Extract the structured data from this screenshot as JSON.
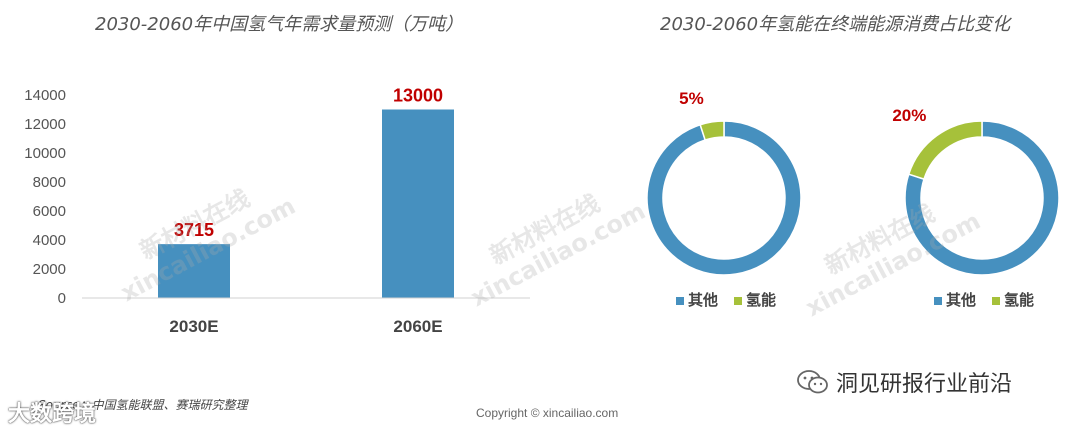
{
  "colors": {
    "bar": "#4690BF",
    "other": "#4690BF",
    "hydrogen": "#A6C13A",
    "label_red": "#C00000",
    "axis_text": "#555555"
  },
  "watermark": {
    "cn": "新材料在线",
    "en": "xincailiao.com"
  },
  "source_text": "Source：中国氢能联盟、赛瑞研究整理",
  "copyright": "Copyright © xincailiao.com",
  "badge_text": "大数跨境",
  "wechat_label": "洞见研报行业前沿",
  "chart_data": [
    {
      "type": "bar",
      "title": "2030-2060年中国氢气年需求量预测（万吨）",
      "categories": [
        "2030E",
        "2060E"
      ],
      "values": [
        3715,
        13000
      ],
      "data_labels": [
        "3715",
        "13000"
      ],
      "ylim": [
        0,
        14000
      ],
      "yticks": [
        0,
        2000,
        4000,
        6000,
        8000,
        10000,
        12000,
        14000
      ],
      "xlabel": "",
      "ylabel": "",
      "grid": false
    },
    {
      "type": "pie",
      "title": "2030-2060年氢能在终端能源消费占比变化",
      "donut": true,
      "legend_position": "bottom",
      "charts": [
        {
          "slices": [
            {
              "name": "其他",
              "value": 95
            },
            {
              "name": "氢能",
              "value": 5
            }
          ],
          "data_label": "5%"
        },
        {
          "slices": [
            {
              "name": "其他",
              "value": 80
            },
            {
              "name": "氢能",
              "value": 20
            }
          ],
          "data_label": "20%"
        }
      ],
      "legend": [
        "其他",
        "氢能"
      ]
    }
  ]
}
